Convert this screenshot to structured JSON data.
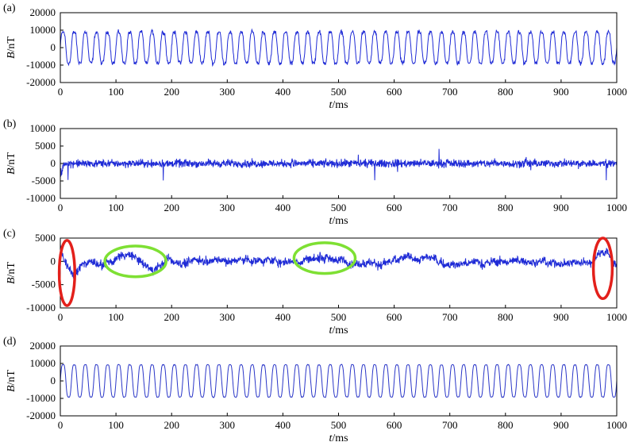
{
  "chart_data": [
    {
      "type": "line",
      "panel_label": "(a)",
      "xlabel": "t/ms",
      "ylabel": "B/nT",
      "xlim": [
        0,
        1000
      ],
      "ylim": [
        -20000,
        20000
      ],
      "xticks": [
        0,
        100,
        200,
        300,
        400,
        500,
        600,
        700,
        800,
        900,
        1000
      ],
      "yticks": [
        -20000,
        -10000,
        0,
        10000,
        20000
      ],
      "series": [
        {
          "color": "#1f2bd6",
          "shape": "periodic",
          "period_ms": 20,
          "amplitude": 10000,
          "noise": 1800
        }
      ]
    },
    {
      "type": "line",
      "panel_label": "(b)",
      "xlabel": "t/ms",
      "ylabel": "B/nT",
      "xlim": [
        0,
        1000
      ],
      "ylim": [
        -10000,
        10000
      ],
      "xticks": [
        0,
        100,
        200,
        300,
        400,
        500,
        600,
        700,
        800,
        900,
        1000
      ],
      "yticks": [
        -10000,
        -5000,
        0,
        5000,
        10000
      ],
      "series": [
        {
          "color": "#1f2bd6",
          "shape": "noise",
          "amplitude": 1200,
          "spike": 4500
        }
      ]
    },
    {
      "type": "line",
      "panel_label": "(c)",
      "xlabel": "t/ms",
      "ylabel": "B/nT",
      "xlim": [
        0,
        1000
      ],
      "ylim": [
        -10000,
        5000
      ],
      "xticks": [
        0,
        100,
        200,
        300,
        400,
        500,
        600,
        700,
        800,
        900,
        1000
      ],
      "yticks": [
        -10000,
        -5000,
        0,
        5000
      ],
      "series": [
        {
          "color": "#1f2bd6",
          "shape": "noise-drift",
          "amplitude": 900
        }
      ],
      "highlights": [
        {
          "color": "#e3201b",
          "x_center": 12,
          "y_center": -2500,
          "x_radius": 14,
          "y_radius": 7000
        },
        {
          "color": "#7ee033",
          "x_center": 135,
          "y_center": 0,
          "x_radius": 55,
          "y_radius": 3300
        },
        {
          "color": "#7ee033",
          "x_center": 475,
          "y_center": 700,
          "x_radius": 55,
          "y_radius": 3300
        },
        {
          "color": "#e3201b",
          "x_center": 975,
          "y_center": -1500,
          "x_radius": 17,
          "y_radius": 6500
        }
      ]
    },
    {
      "type": "line",
      "panel_label": "(d)",
      "xlabel": "t/ms",
      "ylabel": "B/nT",
      "xlim": [
        0,
        1000
      ],
      "ylim": [
        -20000,
        20000
      ],
      "xticks": [
        0,
        100,
        200,
        300,
        400,
        500,
        600,
        700,
        800,
        900,
        1000
      ],
      "yticks": [
        -20000,
        -10000,
        0,
        10000,
        20000
      ],
      "series": [
        {
          "color": "#2a36c8",
          "shape": "periodic-clean",
          "period_ms": 20,
          "amplitude": 10500,
          "noise": 300
        }
      ]
    }
  ]
}
